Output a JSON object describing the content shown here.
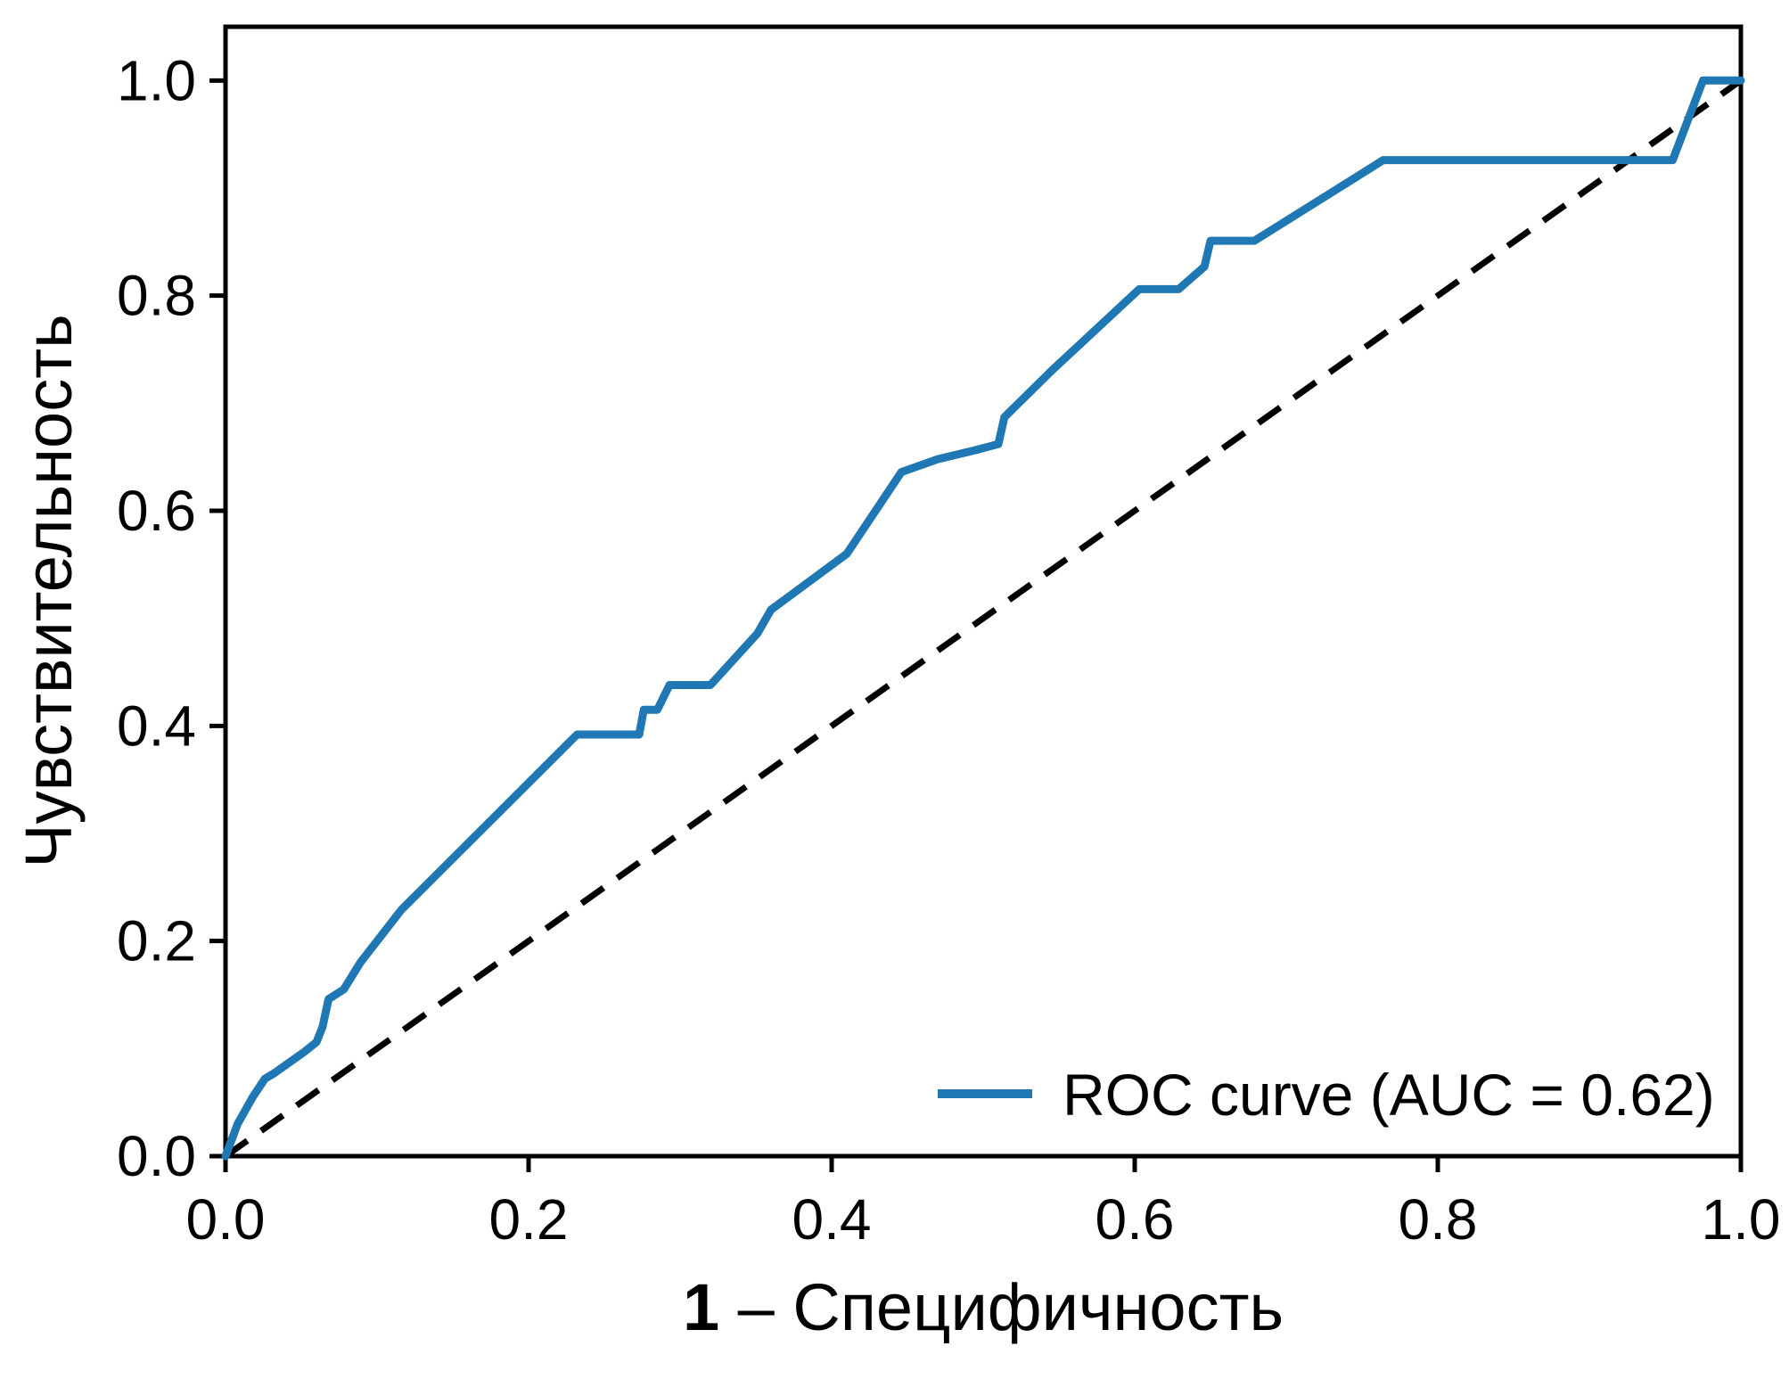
{
  "figure": {
    "background": "#ffffff"
  },
  "axes": {
    "x_label_bold": "1",
    "x_label_rest": " – Специфичность",
    "y_label": "Чувствительность",
    "x_tick_labels": [
      "0.0",
      "0.2",
      "0.4",
      "0.6",
      "0.8",
      "1.0"
    ],
    "y_tick_labels": [
      "0.0",
      "0.2",
      "0.4",
      "0.6",
      "0.8",
      "1.0"
    ]
  },
  "legend": {
    "label": "ROC curve (AUC = 0.62)",
    "position": "lower right"
  },
  "colors": {
    "roc_line": "#1f77b4",
    "diagonal_line": "#000000",
    "axis": "#000000"
  },
  "chart_data": {
    "type": "line",
    "title": "",
    "xlabel": "1 – Специфичность",
    "ylabel": "Чувствительность",
    "xlim": [
      0,
      1.0
    ],
    "ylim": [
      0,
      1.05
    ],
    "grid": false,
    "legend_position": "lower right",
    "auc": 0.62,
    "x_tick_values": [
      0.0,
      0.2,
      0.4,
      0.6,
      0.8,
      1.0
    ],
    "y_tick_values": [
      0.0,
      0.2,
      0.4,
      0.6,
      0.8,
      1.0
    ],
    "series": [
      {
        "name": "ROC curve (AUC = 0.62)",
        "color": "#1f77b4",
        "style": "solid",
        "points": [
          [
            0.0,
            0.0
          ],
          [
            0.008,
            0.03
          ],
          [
            0.018,
            0.055
          ],
          [
            0.026,
            0.072
          ],
          [
            0.032,
            0.077
          ],
          [
            0.052,
            0.097
          ],
          [
            0.06,
            0.106
          ],
          [
            0.064,
            0.12
          ],
          [
            0.068,
            0.146
          ],
          [
            0.078,
            0.155
          ],
          [
            0.089,
            0.18
          ],
          [
            0.116,
            0.229
          ],
          [
            0.232,
            0.392
          ],
          [
            0.273,
            0.392
          ],
          [
            0.276,
            0.415
          ],
          [
            0.285,
            0.415
          ],
          [
            0.293,
            0.438
          ],
          [
            0.32,
            0.438
          ],
          [
            0.351,
            0.486
          ],
          [
            0.36,
            0.508
          ],
          [
            0.41,
            0.56
          ],
          [
            0.446,
            0.636
          ],
          [
            0.47,
            0.648
          ],
          [
            0.494,
            0.656
          ],
          [
            0.51,
            0.662
          ],
          [
            0.514,
            0.687
          ],
          [
            0.545,
            0.73
          ],
          [
            0.603,
            0.806
          ],
          [
            0.629,
            0.806
          ],
          [
            0.646,
            0.827
          ],
          [
            0.65,
            0.851
          ],
          [
            0.679,
            0.851
          ],
          [
            0.764,
            0.926
          ],
          [
            0.955,
            0.926
          ],
          [
            0.975,
            1.0
          ],
          [
            1.0,
            1.0
          ]
        ]
      },
      {
        "name": "chance-diagonal",
        "color": "#000000",
        "style": "dashed",
        "points": [
          [
            0.0,
            0.0
          ],
          [
            1.0,
            1.0
          ]
        ]
      }
    ]
  }
}
